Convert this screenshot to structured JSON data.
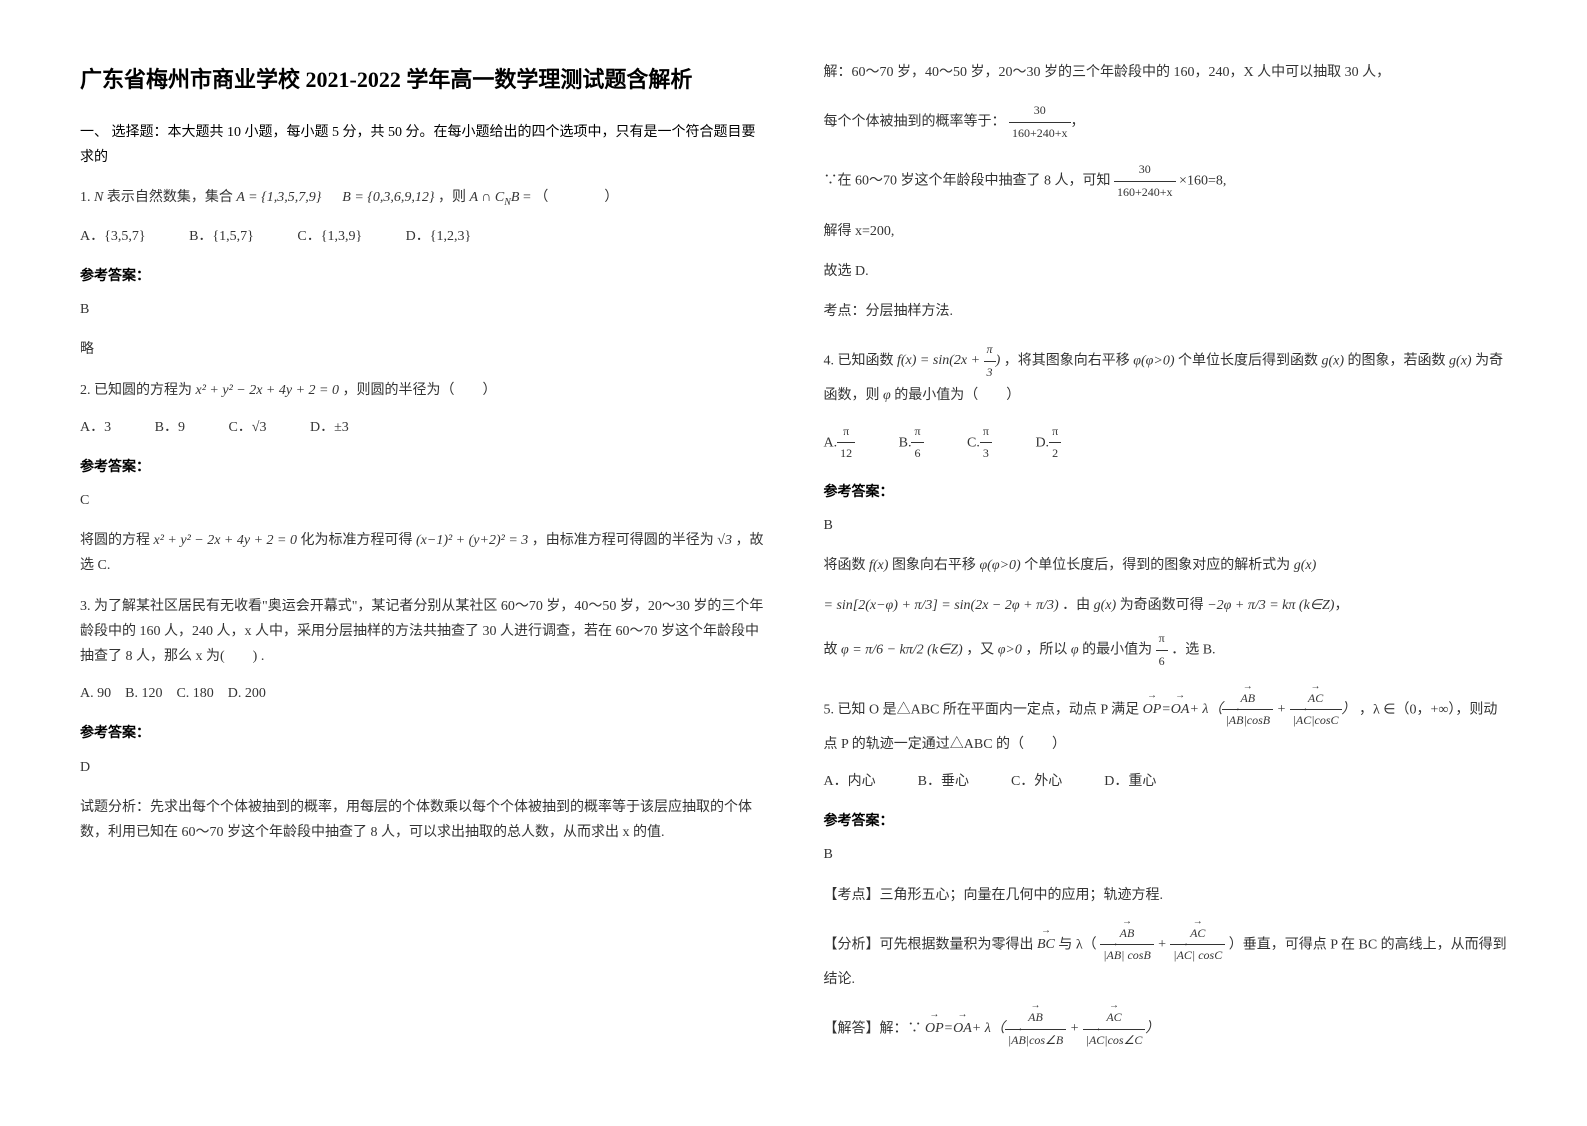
{
  "title": "广东省梅州市商业学校 2021-2022 学年高一数学理测试题含解析",
  "section1_header": "一、 选择题：本大题共 10 小题，每小题 5 分，共 50 分。在每小题给出的四个选项中，只有是一个符合题目要求的",
  "q1": {
    "text_before": "1. ",
    "text_mid1": " 表示自然数集，集合 ",
    "setA": "A = {1,3,5,7,9}",
    "setB": "B = {0,3,6,9,12}",
    "text_mid2": "，则 ",
    "text_end": " = （　　　　）",
    "optA": "{3,5,7}",
    "optB": "{1,5,7}",
    "optC": "{1,3,9}",
    "optD": "{1,2,3}",
    "answer": "B",
    "explain": "略"
  },
  "q2": {
    "text": "2. 已知圆的方程为",
    "eq1": "x² + y² − 2x + 4y + 2 = 0",
    "text2": "，则圆的半径为（　　）",
    "optA": "A．3",
    "optB": "B．9",
    "optC": "C．√3",
    "optD": "D．±3",
    "answer": "C",
    "explain1": "将圆的方程",
    "eq2": "x² + y² − 2x + 4y + 2 = 0",
    "explain2": " 化为标准方程可得",
    "eq3": "(x−1)² + (y+2)² = 3",
    "explain3": "，由标准方程可得圆的半径为",
    "eq4": "√3",
    "explain4": "，故选 C."
  },
  "q3": {
    "text": "3. 为了解某社区居民有无收看\"奥运会开幕式\"，某记者分别从某社区 60～70 岁，40～50 岁，20～30 岁的三个年龄段中的 160 人，240 人，x 人中，采用分层抽样的方法共抽查了 30 人进行调查，若在 60～70 岁这个年龄段中抽查了 8 人，那么 x 为(　　) .",
    "options": "A. 90　B. 120　C. 180　D. 200",
    "answer": "D",
    "analysis": "试题分析：先求出每个个体被抽到的概率，用每层的个体数乘以每个个体被抽到的概率等于该层应抽取的个体数，利用已知在 60～70 岁这个年龄段中抽查了 8 人，可以求出抽取的总人数，从而求出 x 的值.",
    "sol1": "解：60～70 岁，40～50 岁，20～30 岁的三个年龄段中的 160，240，X 人中可以抽取 30 人，",
    "sol2": "每个个体被抽到的概率等于：",
    "frac1_num": "30",
    "frac1_den": "160+240+x",
    "sol3": "∵在 60～70 岁这个年龄段中抽查了 8 人，可知",
    "frac2_num": "30",
    "frac2_den": "160+240+x",
    "sol3b": "×160=8,",
    "sol4": "解得 x=200,",
    "sol5": "故选 D.",
    "sol6": "考点：分层抽样方法."
  },
  "q4": {
    "text1": "4. 已知函数",
    "eq1": "f(x) = sin(2x + π/3)",
    "text2": "，将其图象向右平移",
    "eq2": "φ(φ>0)",
    "text3": " 个单位长度后得到函数",
    "eq3": "g(x)",
    "text4": " 的图象，若函数",
    "eq4": "g(x)",
    "text5": " 为奇函数，则",
    "eq5": "φ",
    "text6": " 的最小值为（　　）",
    "optA_num": "π",
    "optA_den": "12",
    "optB_num": "π",
    "optB_den": "6",
    "optC_num": "π",
    "optC_den": "3",
    "optD_num": "π",
    "optD_den": "2",
    "answer": "B",
    "exp1": "将函数",
    "exp2": " 图象向右平移",
    "exp3": " 个单位长度后，得到的图象对应的解析式为",
    "eq_long": "= sin[2(x−φ) + π/3] = sin(2x − 2φ + π/3)",
    "exp4": "．由",
    "exp5": " 为奇函数可得",
    "eq_cond": "−2φ + π/3 = kπ (k∈Z)",
    "exp6": "故",
    "eq_phi": "φ = π/6 − kπ/2 (k∈Z)",
    "exp7": "，又",
    "exp8": "，所以",
    "exp9": " 的最小值为",
    "exp10": "．选 B."
  },
  "q5": {
    "text1": "5. 已知 O 是△ABC 所在平面内一定点，动点 P 满足",
    "text2": "，λ ∈（0，+∞），则动点 P 的轨迹一定通过△ABC 的（　　）",
    "options": "A．内心　　　B．垂心　　　C．外心　　　D．重心",
    "answer": "B",
    "kp": "【考点】三角形五心；向量在几何中的应用；轨迹方程.",
    "analysis1": "【分析】可先根据数量积为零得出",
    "analysis2": "与 λ（",
    "analysis3": "）垂直，可得点 P 在 BC 的高线上，从而得到结论.",
    "sol_label": "【解答】解：∵"
  },
  "answer_label": "参考答案：",
  "opt_labels": {
    "A": "A．",
    "B": "B．",
    "C": "C．",
    "D": "D．"
  }
}
